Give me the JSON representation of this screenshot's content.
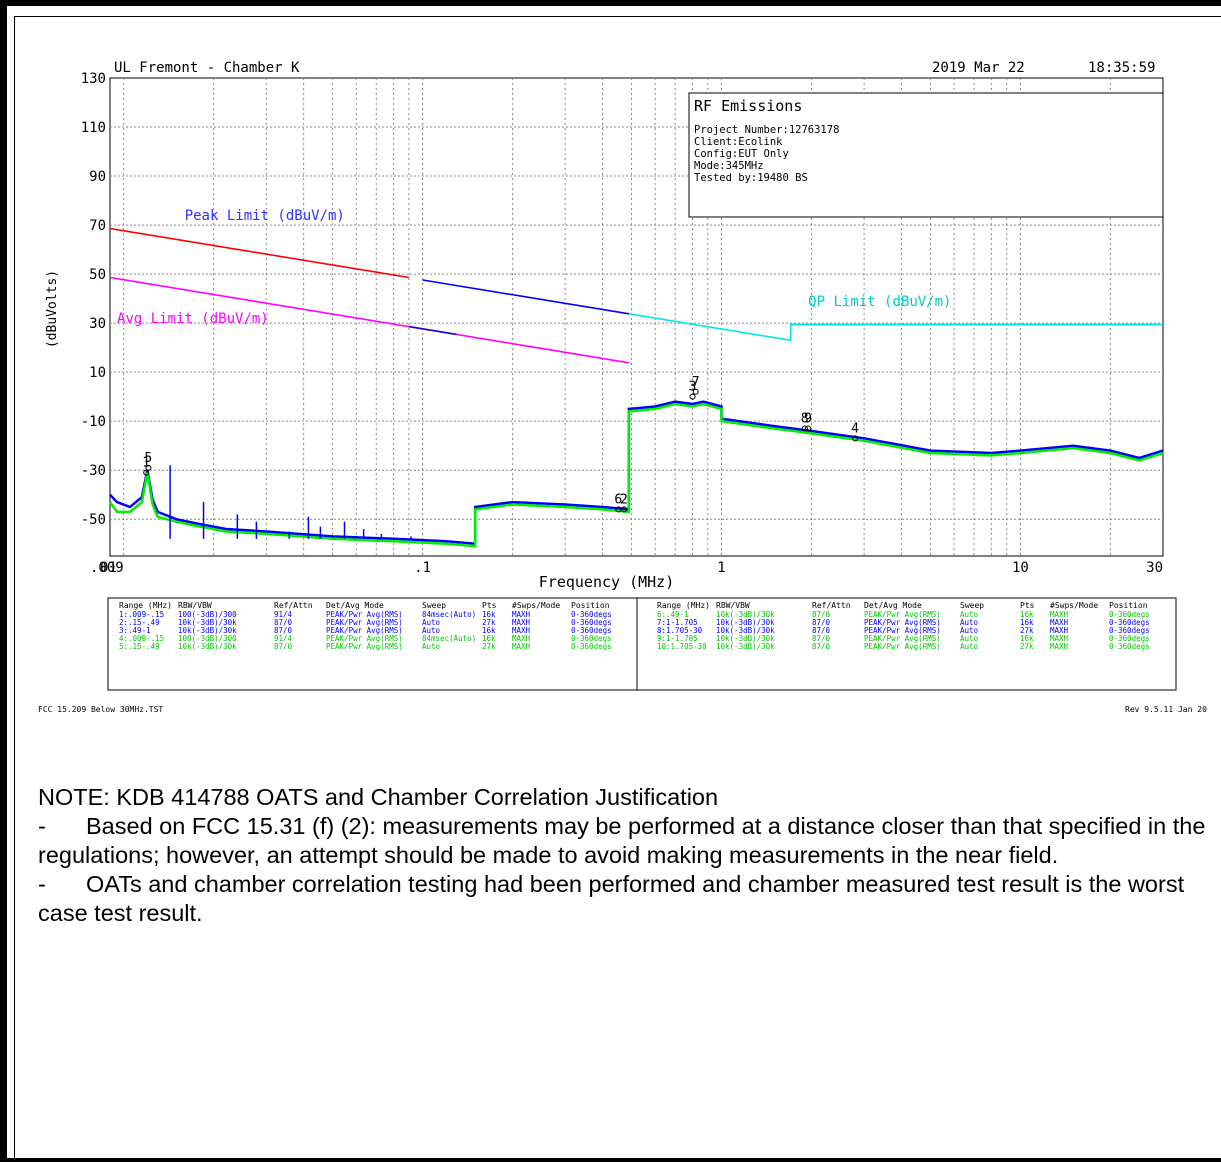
{
  "header": {
    "site": "UL Fremont - Chamber K",
    "date": "2019 Mar 22",
    "time": "18:35:59"
  },
  "info_box": {
    "title": "RF Emissions",
    "lines": [
      "Project Number:12763178",
      "Client:Ecolink",
      "Config:EUT Only",
      "Mode:345MHz",
      "Tested by:19480 BS"
    ]
  },
  "colors": {
    "peak_limit": "#ff0000",
    "avg_limit": "#ff00ff",
    "qp_limit": "#00e5ee",
    "trace_blue": "#0000ff",
    "trace_green": "#00ee00",
    "transition": "#1010c8",
    "grid": "#8a8a8a",
    "label_blue": "#3030ff",
    "label_magenta": "#ff00ff",
    "label_cyan": "#00cccc"
  },
  "chart_data": {
    "type": "line",
    "title": "",
    "xlabel": "Frequency (MHz)",
    "ylabel": "(dBuVolts)",
    "x_scale": "log",
    "xlim": [
      0.009,
      30
    ],
    "ylim": [
      -65,
      130
    ],
    "y_ticks": [
      130,
      110,
      90,
      70,
      50,
      30,
      10,
      -10,
      -30,
      -50
    ],
    "y_tick_labels": [
      "130",
      "110",
      "90",
      "70",
      "50",
      "30",
      "10",
      "-10",
      "-30",
      "-50"
    ],
    "x_ticks": [
      0.009,
      0.1,
      1,
      10,
      30
    ],
    "x_tick_labels": [
      ".009",
      ".1",
      "1",
      "10",
      "30"
    ],
    "x_tick_overlay": "01",
    "grid": true,
    "limit_labels": [
      {
        "text": "Peak Limit (dBuV/m)",
        "color": "blue",
        "x": 0.016,
        "y": 72
      },
      {
        "text": "Avg Limit (dBuV/m)",
        "color": "magenta",
        "x": 0.0095,
        "y": 30
      },
      {
        "text": "QP Limit (dBuV/m)",
        "color": "cyan",
        "x": 1.95,
        "y": 37
      }
    ],
    "series": [
      {
        "name": "Peak Limit (dBuV/m)",
        "color": "red",
        "x": [
          0.009,
          0.09
        ],
        "y": [
          68.6,
          48.6
        ]
      },
      {
        "name": "",
        "color": "blue",
        "x": [
          0.1,
          0.49
        ],
        "y": [
          47.6,
          33.8
        ]
      },
      {
        "name": "Avg Limit (dBuV/m)",
        "color": "magenta",
        "x": [
          0.009,
          0.49
        ],
        "y": [
          48.6,
          13.8
        ]
      },
      {
        "name": "",
        "color": "transition",
        "x": [
          0.09,
          0.13
        ],
        "y": [
          28.6,
          25.4
        ]
      },
      {
        "name": "QP Limit (dBuV/m)",
        "color": "cyan",
        "x": [
          0.49,
          1.705,
          1.705,
          30
        ],
        "y": [
          33.8,
          23,
          29.5,
          29.5
        ]
      },
      {
        "name": "",
        "color": "blue",
        "x": [
          0.009,
          0.0095,
          0.0105,
          0.0115,
          0.012,
          0.0125,
          0.013,
          0.015,
          0.018,
          0.022,
          0.03,
          0.05,
          0.08,
          0.12,
          0.15,
          0.15,
          0.2,
          0.3,
          0.4,
          0.49,
          0.49,
          0.6,
          0.7,
          0.8,
          0.87,
          1.0,
          1.0,
          1.5,
          2.0,
          3.0,
          5.0,
          8.0,
          10.0,
          15.0,
          20.0,
          25.0,
          30.0
        ],
        "y": [
          -40,
          -43,
          -45,
          -41,
          -30,
          -42,
          -47,
          -50,
          -52,
          -54,
          -55,
          -57,
          -58,
          -59,
          -60,
          -45,
          -43,
          -44,
          -45,
          -46,
          -5,
          -4,
          -2,
          -3,
          -2,
          -4,
          -9,
          -12,
          -14,
          -17,
          -22,
          -23,
          -22,
          -20,
          -22,
          -25,
          -22
        ]
      },
      {
        "name": "",
        "color": "green",
        "x": [
          0.009,
          0.0095,
          0.0105,
          0.0115,
          0.012,
          0.0125,
          0.013,
          0.015,
          0.018,
          0.022,
          0.03,
          0.05,
          0.08,
          0.12,
          0.15,
          0.15,
          0.2,
          0.3,
          0.4,
          0.49,
          0.49,
          0.6,
          0.7,
          0.8,
          0.87,
          1.0,
          1.0,
          1.5,
          2.0,
          3.0,
          5.0,
          8.0,
          10.0,
          15.0,
          20.0,
          25.0,
          30.0
        ],
        "y": [
          -43,
          -47,
          -47,
          -43,
          -31,
          -44,
          -49,
          -51,
          -53,
          -55,
          -56,
          -58,
          -59,
          -60,
          -61,
          -46,
          -44,
          -45,
          -46,
          -47,
          -6,
          -5,
          -3,
          -4,
          -3,
          -5,
          -10,
          -13,
          -15,
          -18,
          -23,
          -24,
          -23,
          -21,
          -23,
          -26,
          -23
        ]
      }
    ],
    "spikes": [
      {
        "x": 0.0143,
        "top": -28
      },
      {
        "x": 0.0185,
        "top": -43
      },
      {
        "x": 0.024,
        "top": -48
      },
      {
        "x": 0.0278,
        "top": -51
      },
      {
        "x": 0.0358,
        "top": -55
      },
      {
        "x": 0.0415,
        "top": -49
      },
      {
        "x": 0.0455,
        "top": -53
      },
      {
        "x": 0.0548,
        "top": -51
      },
      {
        "x": 0.0635,
        "top": -54
      },
      {
        "x": 0.0728,
        "top": -56
      },
      {
        "x": 0.0915,
        "top": -57
      }
    ],
    "markers": [
      {
        "label": "1",
        "x": 0.0119,
        "y": -31
      },
      {
        "label": "5",
        "x": 0.0121,
        "y": -29
      },
      {
        "label": "6",
        "x": 0.452,
        "y": -46
      },
      {
        "label": "2",
        "x": 0.472,
        "y": -46
      },
      {
        "label": "3",
        "x": 0.8,
        "y": 0
      },
      {
        "label": "7",
        "x": 0.82,
        "y": 2
      },
      {
        "label": "8",
        "x": 1.9,
        "y": -13
      },
      {
        "label": "9",
        "x": 1.95,
        "y": -13
      },
      {
        "label": "4",
        "x": 2.8,
        "y": -17
      }
    ]
  },
  "settings_table": {
    "columns": [
      "Range (MHz)",
      "RBW/VBW",
      "Ref/Attn",
      "Det/Avg Mode",
      "Sweep",
      "Pts",
      "#Swps/Mode",
      "Position"
    ],
    "left_rows": [
      {
        "color": "blue",
        "cells": [
          "1:.009-.15",
          "100(-3dB)/300",
          "91/4",
          "PEAK/Pwr Avg(RMS)",
          "84msec(Auto)",
          "16k",
          "MAXH",
          "0-360degs"
        ]
      },
      {
        "color": "blue",
        "cells": [
          "2:.15-.49",
          "10k(-3dB)/30k",
          "87/0",
          "PEAK/Pwr Avg(RMS)",
          "Auto",
          "27k",
          "MAXH",
          "0-360degs"
        ]
      },
      {
        "color": "blue",
        "cells": [
          "3:.49-1",
          "10k(-3dB)/30k",
          "87/0",
          "PEAK/Pwr Avg(RMS)",
          "Auto",
          "16k",
          "MAXH",
          "0-360degs"
        ]
      },
      {
        "color": "green",
        "cells": [
          "4:.009-.15",
          "100(-3dB)/300",
          "91/4",
          "PEAK/Pwr Avg(RMS)",
          "84msec(Auto)",
          "16k",
          "MAXH",
          "0-360degs"
        ]
      },
      {
        "color": "green",
        "cells": [
          "5:.15-.49",
          "10k(-3dB)/30k",
          "87/0",
          "PEAK/Pwr Avg(RMS)",
          "Auto",
          "27k",
          "MAXH",
          "0-360degs"
        ]
      }
    ],
    "right_rows": [
      {
        "color": "green",
        "cells": [
          "6:.49-1",
          "10k(-3dB)/30k",
          "87/0",
          "PEAK/Pwr Avg(RMS)",
          "Auto",
          "16k",
          "MAXH",
          "0-360degs"
        ]
      },
      {
        "color": "blue",
        "cells": [
          "7:1-1.705",
          "10k(-3dB)/30k",
          "87/0",
          "PEAK/Pwr Avg(RMS)",
          "Auto",
          "16k",
          "MAXH",
          "0-360degs"
        ]
      },
      {
        "color": "blue",
        "cells": [
          "8:1.705-30",
          "10k(-3dB)/30k",
          "87/0",
          "PEAK/Pwr Avg(RMS)",
          "Auto",
          "27k",
          "MAXH",
          "0-360degs"
        ]
      },
      {
        "color": "green",
        "cells": [
          "9:1-1.705",
          "10k(-3dB)/30k",
          "87/0",
          "PEAK/Pwr Avg(RMS)",
          "Auto",
          "16k",
          "MAXH",
          "0-360degs"
        ]
      },
      {
        "color": "green",
        "cells": [
          "10:1.705-30",
          "10k(-3dB)/30k",
          "87/0",
          "PEAK/Pwr Avg(RMS)",
          "Auto",
          "27k",
          "MAXH",
          "0-360degs"
        ]
      }
    ]
  },
  "footer": {
    "file": "FCC 15.209 Below 30MHz.TST",
    "rev": "Rev 9.5.11 Jan 20"
  },
  "note": {
    "title": "NOTE: KDB 414788 OATS and Chamber Correlation Justification",
    "items": [
      "Based on FCC 15.31 (f) (2): measurements may be performed at a distance closer than that specified in the regulations; however, an attempt should be made to avoid making measurements in the near field.",
      "OATs and chamber correlation testing had been performed and chamber measured test result is the worst case test result."
    ],
    "bullet": "-"
  }
}
